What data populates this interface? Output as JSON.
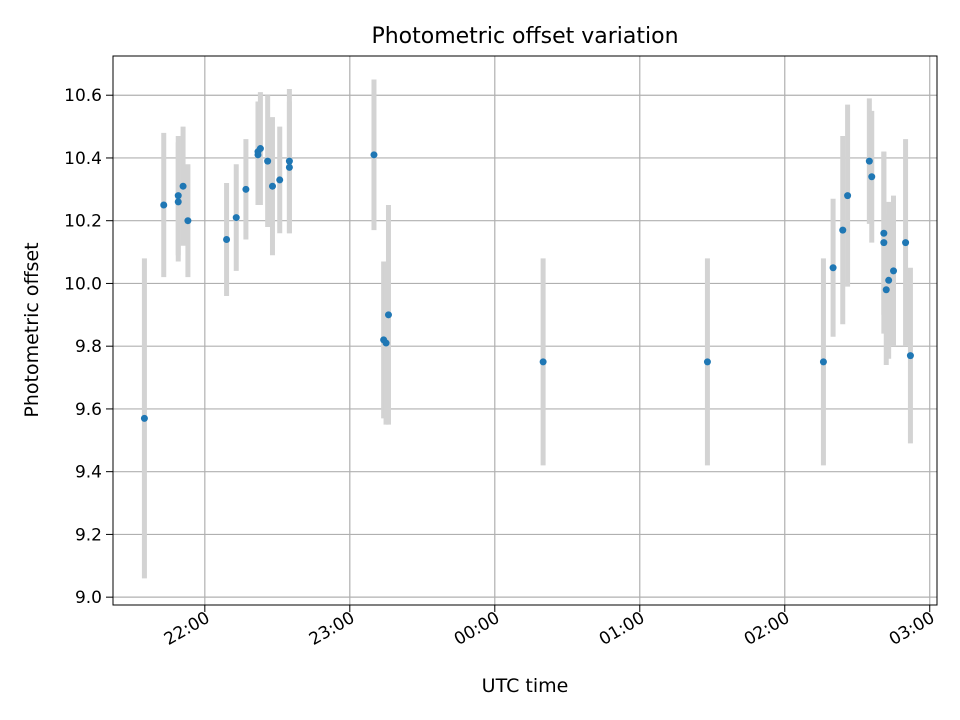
{
  "chart_data": {
    "type": "scatter",
    "title": "Photometric offset variation",
    "xlabel": "UTC time",
    "ylabel": "Photometric offset",
    "x_ticks": [
      "22:00",
      "23:00",
      "00:00",
      "01:00",
      "02:00",
      "03:00"
    ],
    "y_ticks": [
      "9.0",
      "9.2",
      "9.4",
      "9.6",
      "9.8",
      "10.0",
      "10.2",
      "10.4",
      "10.6"
    ],
    "xlim": [
      "21:22",
      "03:03"
    ],
    "ylim": [
      8.975,
      10.725
    ],
    "grid": true,
    "colors": {
      "point": "#1f77b4",
      "errorbar": "#d3d3d3",
      "grid": "#b0b0b0"
    },
    "points": [
      {
        "x": "21:35",
        "y": 9.57,
        "err": 0.51
      },
      {
        "x": "21:43",
        "y": 10.25,
        "err": 0.23
      },
      {
        "x": "21:49",
        "y": 10.28,
        "err": 0.19
      },
      {
        "x": "21:49",
        "y": 10.26,
        "err": 0.19
      },
      {
        "x": "21:51",
        "y": 10.31,
        "err": 0.19
      },
      {
        "x": "21:53",
        "y": 10.2,
        "err": 0.18
      },
      {
        "x": "22:09",
        "y": 10.14,
        "err": 0.18
      },
      {
        "x": "22:13",
        "y": 10.21,
        "err": 0.17
      },
      {
        "x": "22:17",
        "y": 10.3,
        "err": 0.16
      },
      {
        "x": "22:22",
        "y": 10.42,
        "err": 0.16
      },
      {
        "x": "22:22",
        "y": 10.41,
        "err": 0.16
      },
      {
        "x": "22:23",
        "y": 10.43,
        "err": 0.18
      },
      {
        "x": "22:26",
        "y": 10.39,
        "err": 0.21
      },
      {
        "x": "22:28",
        "y": 10.31,
        "err": 0.22
      },
      {
        "x": "22:31",
        "y": 10.33,
        "err": 0.17
      },
      {
        "x": "22:35",
        "y": 10.37,
        "err": 0.21
      },
      {
        "x": "22:35",
        "y": 10.39,
        "err": 0.23
      },
      {
        "x": "23:10",
        "y": 10.41,
        "err": 0.24
      },
      {
        "x": "23:14",
        "y": 9.82,
        "err": 0.25
      },
      {
        "x": "23:15",
        "y": 9.81,
        "err": 0.26
      },
      {
        "x": "23:16",
        "y": 9.9,
        "err": 0.35
      },
      {
        "x": "00:20",
        "y": 9.75,
        "err": 0.33
      },
      {
        "x": "01:28",
        "y": 9.75,
        "err": 0.33
      },
      {
        "x": "02:16",
        "y": 9.75,
        "err": 0.33
      },
      {
        "x": "02:20",
        "y": 10.05,
        "err": 0.22
      },
      {
        "x": "02:24",
        "y": 10.17,
        "err": 0.3
      },
      {
        "x": "02:26",
        "y": 10.28,
        "err": 0.29
      },
      {
        "x": "02:35",
        "y": 10.39,
        "err": 0.2
      },
      {
        "x": "02:36",
        "y": 10.34,
        "err": 0.21
      },
      {
        "x": "02:41",
        "y": 10.16,
        "err": 0.26
      },
      {
        "x": "02:41",
        "y": 10.13,
        "err": 0.29
      },
      {
        "x": "02:42",
        "y": 9.98,
        "err": 0.24
      },
      {
        "x": "02:43",
        "y": 10.01,
        "err": 0.25
      },
      {
        "x": "02:45",
        "y": 10.04,
        "err": 0.24
      },
      {
        "x": "02:50",
        "y": 10.13,
        "err": 0.33
      },
      {
        "x": "02:52",
        "y": 9.77,
        "err": 0.28
      }
    ]
  }
}
